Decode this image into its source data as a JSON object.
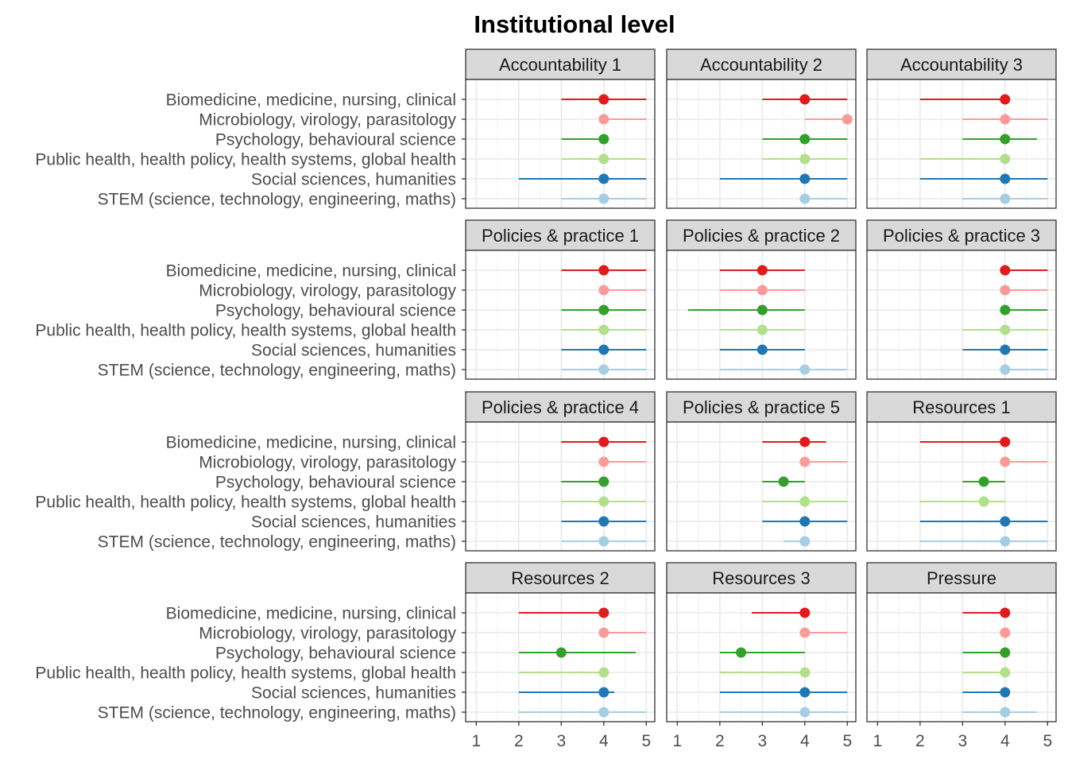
{
  "chart_data": {
    "type": "dot-interval",
    "title": "Institutional level",
    "xlabel": "",
    "ylabel": "",
    "xlim": [
      0.75,
      5.2
    ],
    "xticks": [
      1,
      2,
      3,
      4,
      5
    ],
    "grid": true,
    "legend": "none",
    "categories": [
      "Biomedicine, medicine, nursing, clinical",
      "Microbiology, virology, parasitology",
      "Psychology, behavioural science",
      "Public health, health policy, health systems, global health",
      "Social sciences, humanities",
      "STEM (science, technology, engineering, maths)"
    ],
    "colors": [
      "#e31a1c",
      "#fb9a99",
      "#33a02c",
      "#b2df8a",
      "#1f78b4",
      "#a6cee3"
    ],
    "panels": [
      {
        "label": "Accountability 1",
        "median": [
          4,
          4,
          4,
          4,
          4,
          4
        ],
        "low": [
          3,
          4,
          3,
          3,
          2,
          3
        ],
        "high": [
          5,
          5,
          4,
          5,
          5,
          5
        ]
      },
      {
        "label": "Accountability 2",
        "median": [
          4,
          5,
          4,
          4,
          4,
          4
        ],
        "low": [
          3,
          4,
          3,
          3,
          2,
          4
        ],
        "high": [
          5,
          5,
          5,
          5,
          5,
          5
        ]
      },
      {
        "label": "Accountability 3",
        "median": [
          4,
          4,
          4,
          4,
          4,
          4
        ],
        "low": [
          2,
          3,
          3,
          2,
          2,
          3
        ],
        "high": [
          4,
          5,
          4.75,
          4,
          5,
          5
        ]
      },
      {
        "label": "Policies & practice 1",
        "median": [
          4,
          4,
          4,
          4,
          4,
          4
        ],
        "low": [
          3,
          4,
          3,
          3,
          3,
          3
        ],
        "high": [
          5,
          5,
          5,
          5,
          5,
          5
        ]
      },
      {
        "label": "Policies & practice 2",
        "median": [
          3,
          3,
          3,
          3,
          3,
          4
        ],
        "low": [
          2,
          2,
          1.25,
          2,
          2,
          2
        ],
        "high": [
          4,
          4,
          4,
          4,
          4,
          5
        ]
      },
      {
        "label": "Policies & practice 3",
        "median": [
          4,
          4,
          4,
          4,
          4,
          4
        ],
        "low": [
          4,
          4,
          4,
          3,
          3,
          4
        ],
        "high": [
          5,
          5,
          5,
          5,
          5,
          5
        ]
      },
      {
        "label": "Policies & practice 4",
        "median": [
          4,
          4,
          4,
          4,
          4,
          4
        ],
        "low": [
          3,
          4,
          3,
          3,
          3,
          3
        ],
        "high": [
          5,
          5,
          4,
          5,
          5,
          5
        ]
      },
      {
        "label": "Policies & practice 5",
        "median": [
          4,
          4,
          3.5,
          4,
          4,
          4
        ],
        "low": [
          3,
          4,
          3,
          3,
          3,
          3.5
        ],
        "high": [
          4.5,
          5,
          4,
          5,
          5,
          4
        ]
      },
      {
        "label": "Resources 1",
        "median": [
          4,
          4,
          3.5,
          3.5,
          4,
          4
        ],
        "low": [
          2,
          4,
          3,
          2,
          2,
          2
        ],
        "high": [
          4,
          5,
          4,
          4,
          5,
          5
        ]
      },
      {
        "label": "Resources 2",
        "median": [
          4,
          4,
          3,
          4,
          4,
          4
        ],
        "low": [
          2,
          4,
          2,
          2,
          2,
          2
        ],
        "high": [
          4,
          5,
          4.75,
          4,
          4.25,
          5
        ]
      },
      {
        "label": "Resources 3",
        "median": [
          4,
          4,
          2.5,
          4,
          4,
          4
        ],
        "low": [
          2.75,
          4,
          2,
          2,
          2,
          2
        ],
        "high": [
          4,
          5,
          4,
          4,
          5,
          5
        ]
      },
      {
        "label": "Pressure",
        "median": [
          4,
          4,
          4,
          4,
          4,
          4
        ],
        "low": [
          3,
          4,
          3,
          3,
          3,
          3
        ],
        "high": [
          4,
          4,
          4,
          4,
          4,
          4.75
        ]
      }
    ]
  }
}
